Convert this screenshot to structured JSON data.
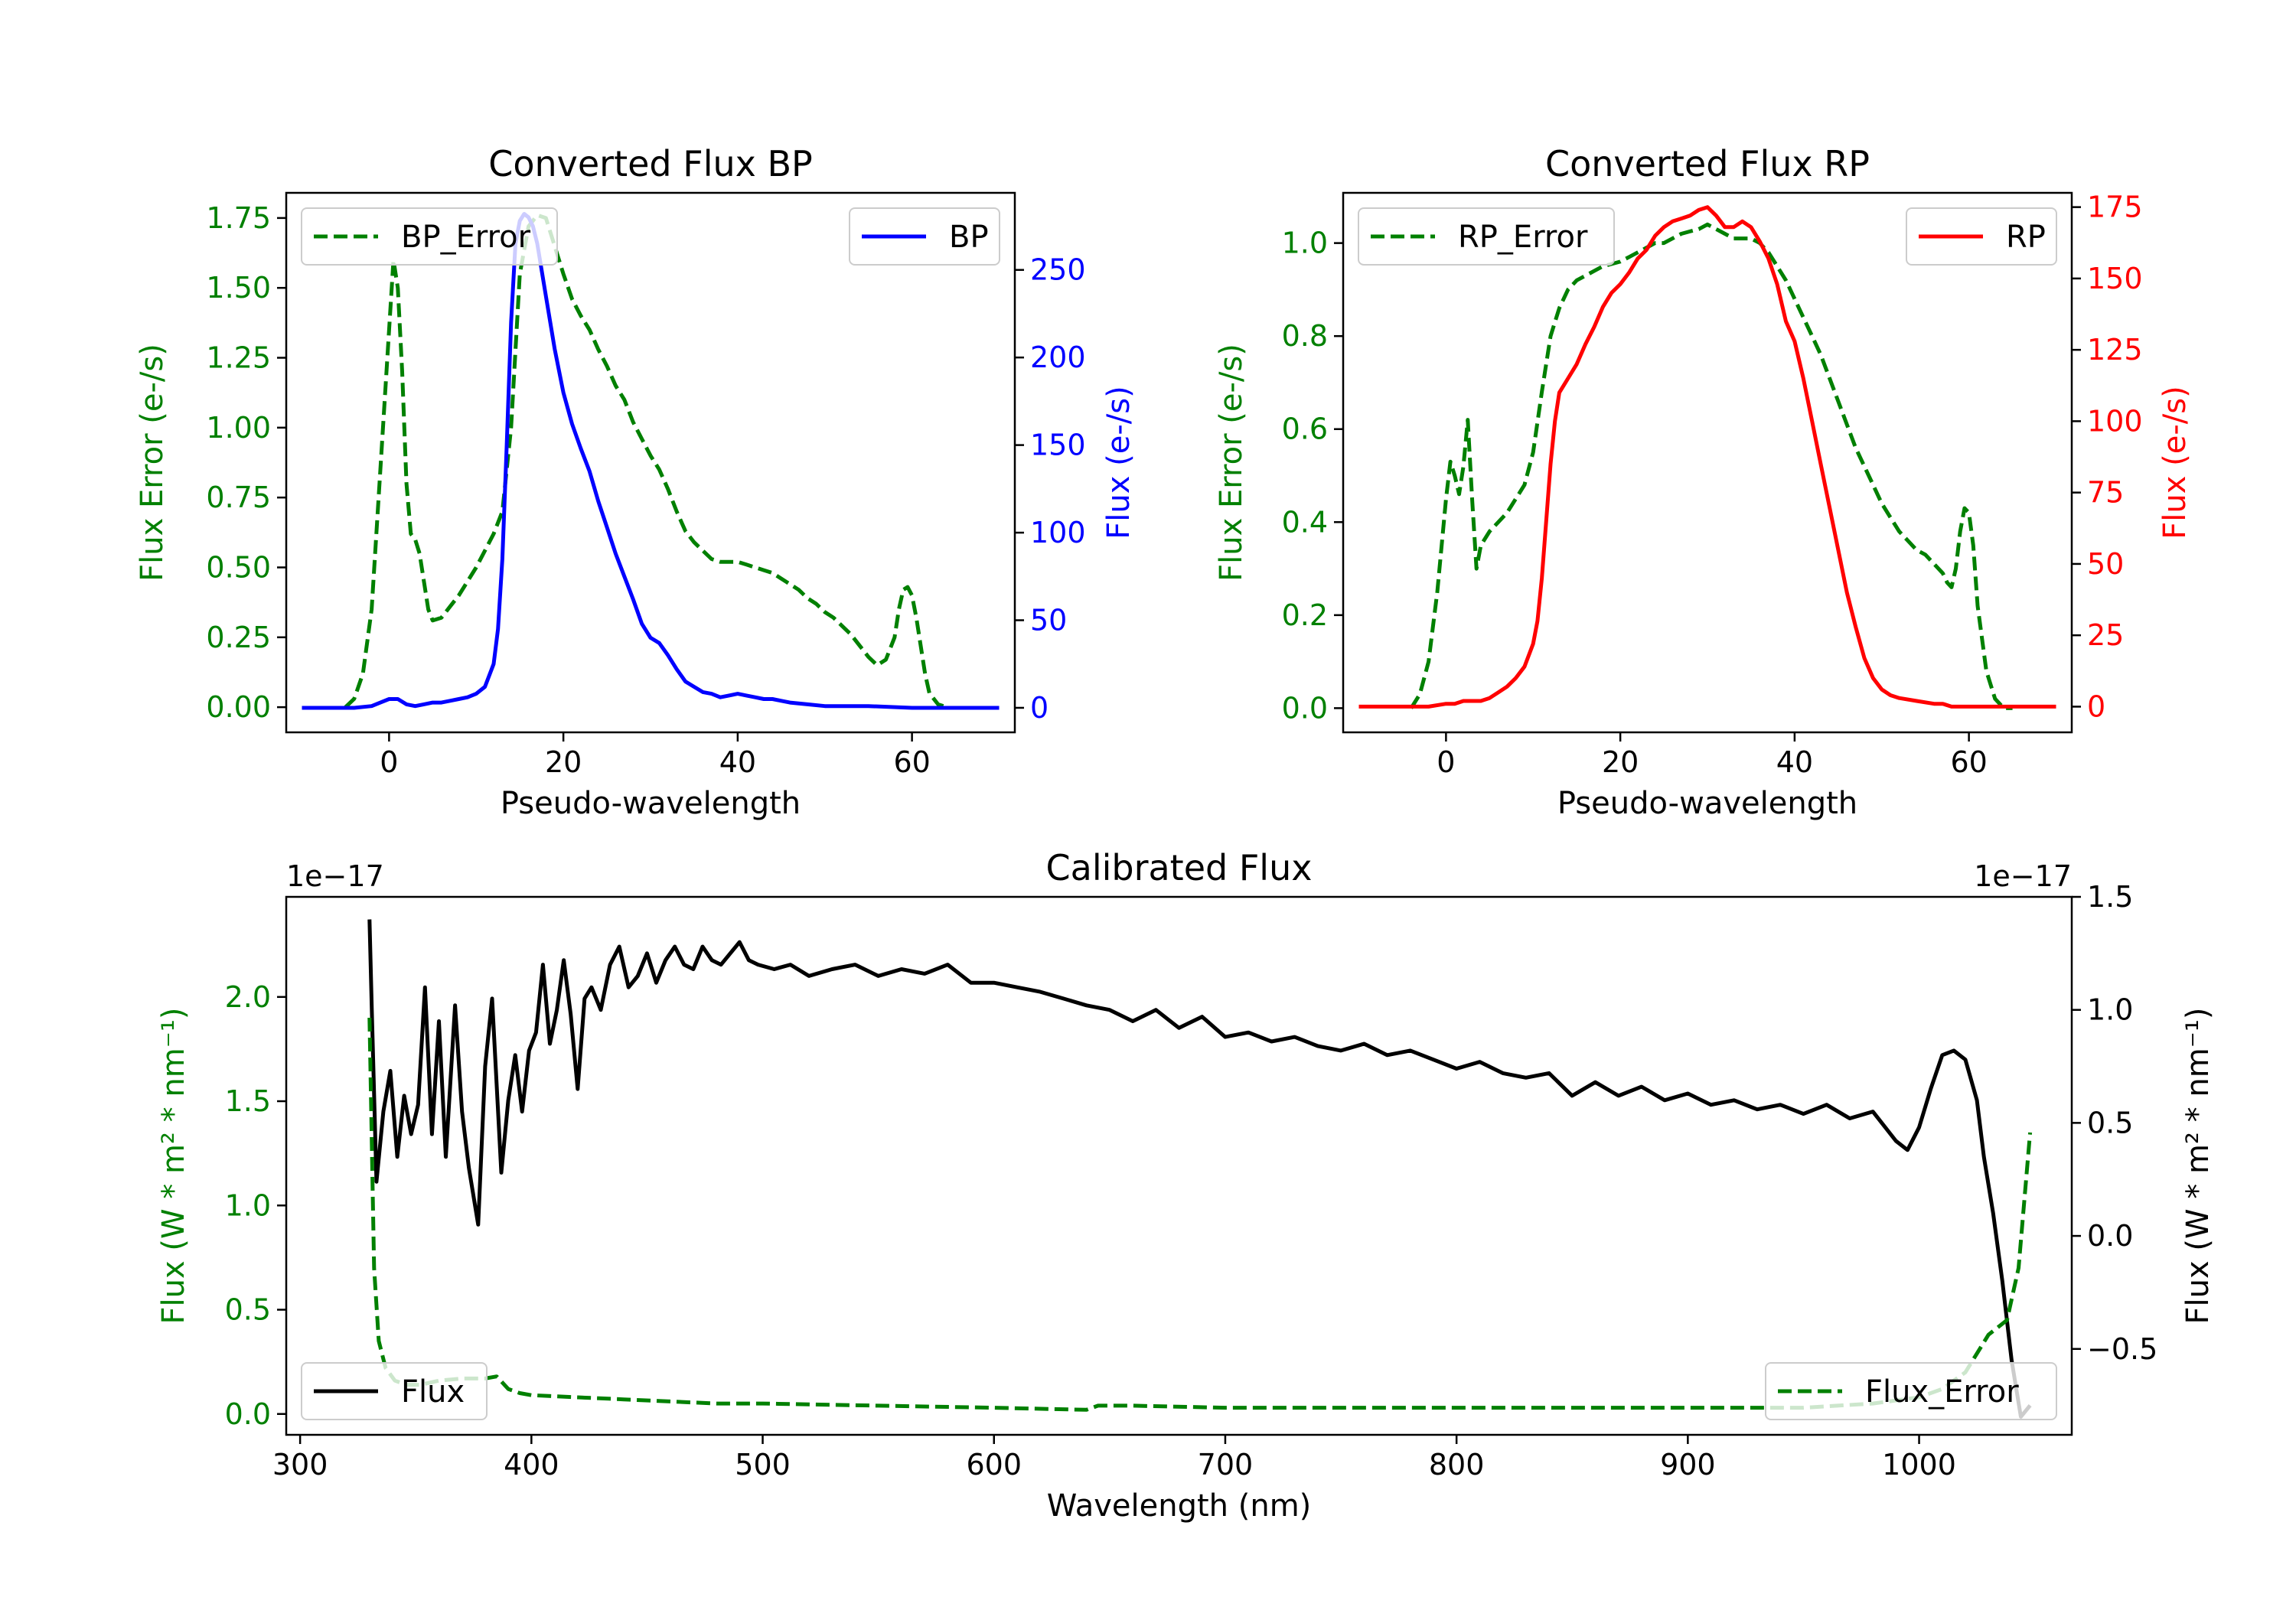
{
  "colors": {
    "bp": "#0000ff",
    "rp": "#ff0000",
    "error": "#008000",
    "flux": "#000000",
    "axis": "#000000"
  },
  "chart_data": [
    {
      "id": "bp",
      "type": "line",
      "title": "Converted Flux BP",
      "xlabel": "Pseudo-wavelength",
      "ylabel_left": "Flux Error (e-/s)",
      "ylabel_right": "Flux (e-/s)",
      "xlim": [
        -11.8,
        71.8
      ],
      "ylim_left": [
        -0.09,
        1.84
      ],
      "ylim_right": [
        -14,
        294
      ],
      "xticks": [
        0,
        20,
        40,
        60
      ],
      "xtick_labels": [
        "0",
        "20",
        "40",
        "60"
      ],
      "yticks_left": [
        0.0,
        0.25,
        0.5,
        0.75,
        1.0,
        1.25,
        1.5,
        1.75
      ],
      "ytick_labels_left": [
        "0.00",
        "0.25",
        "0.50",
        "0.75",
        "1.00",
        "1.25",
        "1.50",
        "1.75"
      ],
      "yticks_right": [
        0,
        50,
        100,
        150,
        200,
        250
      ],
      "ytick_labels_right": [
        "0",
        "50",
        "100",
        "150",
        "200",
        "250"
      ],
      "legend_left": "BP_Error",
      "legend_right": "BP",
      "series": [
        {
          "name": "BP_Error",
          "axis": "left",
          "style": "dashed",
          "color": "#008000",
          "x": [
            -5,
            -4,
            -3,
            -2,
            -1,
            0,
            0.5,
            1,
            1.5,
            2,
            2.5,
            3,
            3.5,
            4,
            4.5,
            5,
            6,
            7,
            8,
            9,
            10,
            11,
            12,
            13,
            14,
            15,
            16,
            17,
            18,
            19,
            20,
            21,
            22,
            23,
            24,
            25,
            26,
            27,
            28,
            29,
            30,
            31,
            32,
            33,
            34,
            35,
            36,
            37,
            38,
            39,
            40,
            41,
            42,
            43,
            44,
            45,
            46,
            47,
            48,
            49,
            50,
            51,
            52,
            53,
            54,
            55,
            56,
            57,
            58,
            58.5,
            59,
            59.5,
            60,
            60.5,
            61,
            61.5,
            62,
            63,
            64
          ],
          "y": [
            0.0,
            0.03,
            0.12,
            0.35,
            0.85,
            1.35,
            1.6,
            1.5,
            1.2,
            0.8,
            0.62,
            0.6,
            0.55,
            0.45,
            0.35,
            0.31,
            0.32,
            0.36,
            0.4,
            0.45,
            0.5,
            0.56,
            0.62,
            0.7,
            1.0,
            1.55,
            1.72,
            1.76,
            1.75,
            1.65,
            1.55,
            1.46,
            1.4,
            1.35,
            1.28,
            1.22,
            1.15,
            1.1,
            1.02,
            0.96,
            0.9,
            0.85,
            0.78,
            0.7,
            0.63,
            0.59,
            0.56,
            0.53,
            0.52,
            0.52,
            0.52,
            0.51,
            0.5,
            0.49,
            0.48,
            0.46,
            0.44,
            0.42,
            0.39,
            0.37,
            0.34,
            0.32,
            0.29,
            0.26,
            0.22,
            0.18,
            0.15,
            0.17,
            0.25,
            0.35,
            0.42,
            0.43,
            0.4,
            0.32,
            0.22,
            0.12,
            0.05,
            0.01,
            0.0
          ]
        },
        {
          "name": "BP",
          "axis": "right",
          "style": "solid",
          "color": "#0000ff",
          "x": [
            -10,
            -8,
            -6,
            -4,
            -2,
            -1,
            0,
            1,
            2,
            3,
            4,
            5,
            6,
            7,
            8,
            9,
            10,
            11,
            12,
            12.5,
            13,
            13.5,
            14,
            14.5,
            15,
            15.5,
            16,
            16.5,
            17,
            18,
            19,
            20,
            21,
            22,
            23,
            24,
            25,
            26,
            27,
            28,
            29,
            30,
            31,
            32,
            33,
            34,
            35,
            36,
            37,
            38,
            39,
            40,
            41,
            42,
            43,
            44,
            45,
            46,
            48,
            50,
            55,
            60,
            65,
            70
          ],
          "y": [
            0,
            0,
            0,
            0,
            1,
            3,
            5,
            5,
            2,
            1,
            2,
            3,
            3,
            4,
            5,
            6,
            8,
            12,
            25,
            45,
            85,
            150,
            220,
            265,
            278,
            282,
            280,
            275,
            265,
            235,
            205,
            180,
            162,
            148,
            135,
            118,
            103,
            88,
            75,
            62,
            48,
            40,
            37,
            30,
            22,
            15,
            12,
            9,
            8,
            6,
            7,
            8,
            7,
            6,
            5,
            5,
            4,
            3,
            2,
            1,
            1,
            0,
            0,
            0
          ]
        }
      ]
    },
    {
      "id": "rp",
      "type": "line",
      "title": "Converted Flux RP",
      "xlabel": "Pseudo-wavelength",
      "ylabel_left": "Flux Error (e-/s)",
      "ylabel_right": "Flux (e-/s)",
      "xlim": [
        -11.8,
        71.8
      ],
      "ylim_left": [
        -0.052,
        1.108
      ],
      "ylim_right": [
        -9,
        180
      ],
      "xticks": [
        0,
        20,
        40,
        60
      ],
      "xtick_labels": [
        "0",
        "20",
        "40",
        "60"
      ],
      "yticks_left": [
        0.0,
        0.2,
        0.4,
        0.6,
        0.8,
        1.0
      ],
      "ytick_labels_left": [
        "0.0",
        "0.2",
        "0.4",
        "0.6",
        "0.8",
        "1.0"
      ],
      "yticks_right": [
        0,
        25,
        50,
        75,
        100,
        125,
        150,
        175
      ],
      "ytick_labels_right": [
        "0",
        "25",
        "50",
        "75",
        "100",
        "125",
        "150",
        "175"
      ],
      "legend_left": "RP_Error",
      "legend_right": "RP",
      "series": [
        {
          "name": "RP_Error",
          "axis": "left",
          "style": "dashed",
          "color": "#008000",
          "x": [
            -4,
            -3,
            -2,
            -1,
            0,
            0.5,
            1,
            1.5,
            2,
            2.5,
            3,
            3.5,
            4,
            5,
            6,
            7,
            8,
            9,
            10,
            11,
            12,
            13,
            14,
            15,
            16,
            17,
            18,
            19,
            20,
            21,
            22,
            23,
            24,
            25,
            26,
            27,
            28,
            29,
            30,
            31,
            32,
            33,
            34,
            35,
            36,
            37,
            38,
            39,
            40,
            41,
            42,
            43,
            44,
            45,
            46,
            47,
            48,
            49,
            50,
            51,
            52,
            53,
            54,
            55,
            56,
            57,
            57.5,
            58,
            58.5,
            59,
            59.5,
            60,
            60.5,
            61,
            62,
            63,
            64,
            65
          ],
          "y": [
            0.0,
            0.03,
            0.1,
            0.25,
            0.45,
            0.53,
            0.5,
            0.46,
            0.52,
            0.62,
            0.45,
            0.3,
            0.35,
            0.38,
            0.4,
            0.42,
            0.45,
            0.48,
            0.55,
            0.68,
            0.8,
            0.86,
            0.9,
            0.92,
            0.93,
            0.94,
            0.95,
            0.955,
            0.96,
            0.97,
            0.98,
            0.99,
            1.0,
            1.0,
            1.01,
            1.02,
            1.025,
            1.03,
            1.04,
            1.03,
            1.02,
            1.01,
            1.01,
            1.01,
            1.0,
            0.98,
            0.95,
            0.92,
            0.88,
            0.84,
            0.8,
            0.76,
            0.71,
            0.66,
            0.61,
            0.56,
            0.52,
            0.48,
            0.44,
            0.41,
            0.38,
            0.36,
            0.34,
            0.33,
            0.31,
            0.29,
            0.27,
            0.26,
            0.3,
            0.38,
            0.43,
            0.42,
            0.35,
            0.22,
            0.08,
            0.02,
            0.0,
            0.0
          ]
        },
        {
          "name": "RP",
          "axis": "right",
          "style": "solid",
          "color": "#ff0000",
          "x": [
            -10,
            -6,
            -4,
            -2,
            0,
            1,
            2,
            3,
            4,
            5,
            6,
            7,
            8,
            9,
            10,
            10.5,
            11,
            11.5,
            12,
            12.5,
            13,
            14,
            15,
            16,
            17,
            18,
            19,
            20,
            21,
            22,
            23,
            24,
            25,
            26,
            27,
            28,
            29,
            30,
            31,
            32,
            33,
            34,
            35,
            36,
            37,
            38,
            39,
            40,
            41,
            42,
            43,
            44,
            45,
            46,
            47,
            48,
            49,
            50,
            51,
            52,
            54,
            56,
            57,
            58,
            59,
            60,
            62,
            64,
            70
          ],
          "y": [
            0,
            0,
            0,
            0,
            1,
            1,
            2,
            2,
            2,
            3,
            5,
            7,
            10,
            14,
            22,
            30,
            45,
            65,
            85,
            100,
            110,
            115,
            120,
            127,
            133,
            140,
            145,
            148,
            152,
            157,
            160,
            165,
            168,
            170,
            171,
            172,
            174,
            175,
            172,
            168,
            168,
            170,
            168,
            163,
            157,
            148,
            135,
            128,
            115,
            100,
            85,
            70,
            55,
            40,
            28,
            17,
            10,
            6,
            4,
            3,
            2,
            1,
            1,
            0,
            0,
            0,
            0,
            0,
            0
          ]
        }
      ]
    },
    {
      "id": "calibrated",
      "type": "line",
      "title": "Calibrated Flux",
      "xlabel": "Wavelength (nm)",
      "ylabel_left": "Flux (W * m² * nm⁻¹)",
      "ylabel_right": "Flux (W * m² * nm⁻¹)",
      "offset_left": "1e−17",
      "offset_right": "1e−17",
      "xlim": [
        294,
        1066
      ],
      "ylim_left": [
        -0.1,
        2.48
      ],
      "ylim_right": [
        -0.88,
        1.5
      ],
      "xticks": [
        300,
        400,
        500,
        600,
        700,
        800,
        900,
        1000
      ],
      "xtick_labels": [
        "300",
        "400",
        "500",
        "600",
        "700",
        "800",
        "900",
        "1000"
      ],
      "yticks_left": [
        0.0,
        0.5,
        1.0,
        1.5,
        2.0
      ],
      "ytick_labels_left": [
        "0.0",
        "0.5",
        "1.0",
        "1.5",
        "2.0"
      ],
      "yticks_right": [
        -0.5,
        0.0,
        0.5,
        1.0,
        1.5
      ],
      "ytick_labels_right": [
        "−0.5",
        "0.0",
        "0.5",
        "1.0",
        "1.5"
      ],
      "legend_left": "Flux",
      "legend_right": "Flux_Error",
      "series": [
        {
          "name": "Flux",
          "axis": "right",
          "style": "solid",
          "color": "#000000",
          "x": [
            330,
            331,
            333,
            336,
            339,
            342,
            345,
            348,
            351,
            354,
            357,
            360,
            363,
            367,
            370,
            373,
            377,
            380,
            383,
            387,
            390,
            393,
            396,
            399,
            402,
            405,
            408,
            411,
            414,
            417,
            420,
            423,
            426,
            430,
            434,
            438,
            442,
            446,
            450,
            454,
            458,
            462,
            466,
            470,
            474,
            478,
            482,
            486,
            490,
            494,
            498,
            505,
            512,
            520,
            530,
            540,
            550,
            560,
            570,
            580,
            590,
            600,
            610,
            620,
            630,
            640,
            650,
            660,
            670,
            680,
            690,
            700,
            710,
            720,
            730,
            740,
            750,
            760,
            770,
            780,
            790,
            800,
            810,
            820,
            830,
            840,
            850,
            860,
            870,
            880,
            890,
            900,
            910,
            920,
            930,
            940,
            950,
            960,
            970,
            980,
            990,
            995,
            1000,
            1005,
            1010,
            1015,
            1020,
            1025,
            1028,
            1032,
            1036,
            1040,
            1044,
            1048
          ],
          "y": [
            1.4,
            1.0,
            0.24,
            0.55,
            0.73,
            0.35,
            0.62,
            0.45,
            0.58,
            1.1,
            0.45,
            0.95,
            0.35,
            1.02,
            0.55,
            0.3,
            0.05,
            0.75,
            1.05,
            0.28,
            0.6,
            0.8,
            0.55,
            0.82,
            0.9,
            1.2,
            0.85,
            1.0,
            1.22,
            0.98,
            0.65,
            1.05,
            1.1,
            1.0,
            1.2,
            1.28,
            1.1,
            1.15,
            1.25,
            1.12,
            1.22,
            1.28,
            1.2,
            1.18,
            1.28,
            1.22,
            1.2,
            1.25,
            1.3,
            1.22,
            1.2,
            1.18,
            1.2,
            1.15,
            1.18,
            1.2,
            1.15,
            1.18,
            1.16,
            1.2,
            1.12,
            1.12,
            1.1,
            1.08,
            1.05,
            1.02,
            1.0,
            0.95,
            1.0,
            0.92,
            0.97,
            0.88,
            0.9,
            0.86,
            0.88,
            0.84,
            0.82,
            0.85,
            0.8,
            0.82,
            0.78,
            0.74,
            0.77,
            0.72,
            0.7,
            0.72,
            0.62,
            0.68,
            0.62,
            0.66,
            0.6,
            0.63,
            0.58,
            0.6,
            0.56,
            0.58,
            0.54,
            0.58,
            0.52,
            0.55,
            0.42,
            0.38,
            0.48,
            0.65,
            0.8,
            0.82,
            0.78,
            0.6,
            0.35,
            0.1,
            -0.2,
            -0.55,
            -0.8,
            -0.75
          ]
        },
        {
          "name": "Flux_Error",
          "axis": "left",
          "style": "dashed",
          "color": "#008000",
          "x": [
            330,
            331,
            332,
            334,
            337,
            341,
            346,
            352,
            360,
            370,
            380,
            385,
            390,
            395,
            400,
            420,
            440,
            460,
            480,
            500,
            550,
            600,
            640,
            645,
            660,
            700,
            750,
            800,
            850,
            900,
            950,
            980,
            1000,
            1010,
            1020,
            1030,
            1038,
            1043,
            1048
          ],
          "y": [
            1.9,
            1.3,
            0.7,
            0.35,
            0.22,
            0.16,
            0.14,
            0.14,
            0.16,
            0.17,
            0.17,
            0.18,
            0.12,
            0.1,
            0.09,
            0.08,
            0.07,
            0.06,
            0.05,
            0.05,
            0.04,
            0.03,
            0.02,
            0.04,
            0.04,
            0.03,
            0.03,
            0.03,
            0.03,
            0.03,
            0.03,
            0.05,
            0.08,
            0.12,
            0.2,
            0.38,
            0.45,
            0.7,
            1.35
          ]
        }
      ]
    }
  ]
}
